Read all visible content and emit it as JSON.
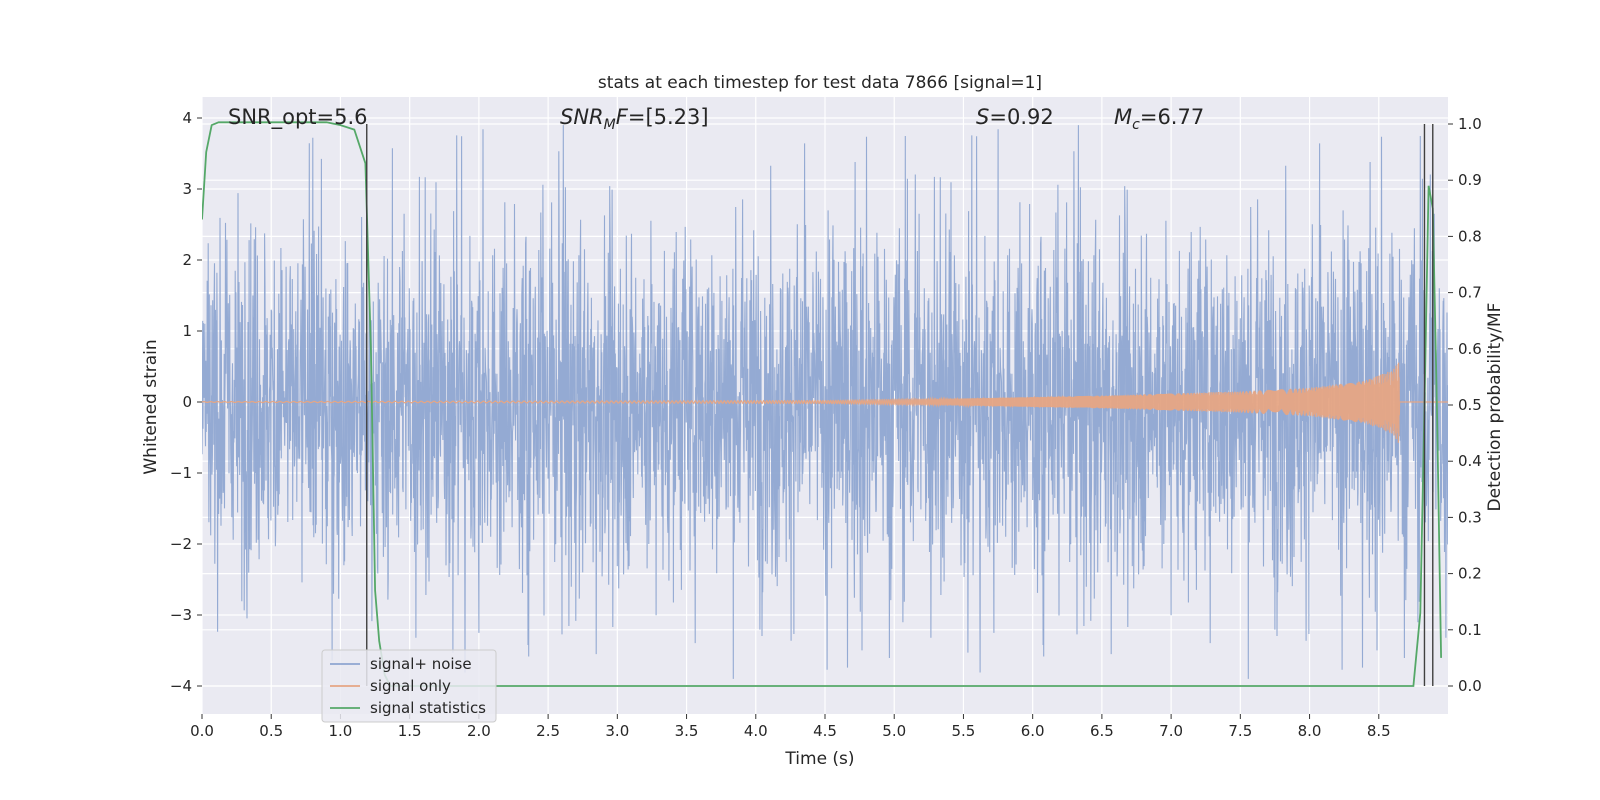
{
  "chart_data": {
    "type": "line",
    "title": "stats at each timestep for test data 7866 [signal=1]",
    "xlabel": "Time (s)",
    "ylabel_left": "Whitened strain",
    "ylabel_right": "Detection probability/MF",
    "xlim": [
      0,
      9.0
    ],
    "ylim_left": [
      -4.4,
      4.3
    ],
    "ylim_right": [
      -0.05,
      1.03
    ],
    "xticks": [
      "0.0",
      "0.5",
      "1.0",
      "1.5",
      "2.0",
      "2.5",
      "3.0",
      "3.5",
      "4.0",
      "4.5",
      "5.0",
      "5.5",
      "6.0",
      "6.5",
      "7.0",
      "7.5",
      "8.0",
      "8.5"
    ],
    "yticks_left": [
      "4",
      "3",
      "2",
      "1",
      "0",
      "−1",
      "−2",
      "−3",
      "−4"
    ],
    "yticks_left_values": [
      4,
      3,
      2,
      1,
      0,
      -1,
      -2,
      -3,
      -4
    ],
    "yticks_right": [
      "1.0",
      "0.9",
      "0.8",
      "0.7",
      "0.6",
      "0.5",
      "0.4",
      "0.3",
      "0.2",
      "0.1",
      "0.0"
    ],
    "yticks_right_values": [
      1.0,
      0.9,
      0.8,
      0.7,
      0.6,
      0.5,
      0.4,
      0.3,
      0.2,
      0.1,
      0.0
    ],
    "grid": true,
    "annotations": {
      "snr_opt": "SNR_opt=5.6",
      "snr_mf": "[5.23]",
      "s": "0.92",
      "mc": "6.77"
    },
    "series": [
      {
        "name": "signal+ noise",
        "color": "#8fa6d1",
        "axis": "left",
        "description_range": [
          -3.9,
          3.9
        ],
        "typical_amplitude": 2.0
      },
      {
        "name": "signal only",
        "color": "#e6a584",
        "axis": "left",
        "envelope": {
          "x": [
            0,
            4.5,
            5.5,
            6.5,
            7.5,
            8.0,
            8.4,
            8.6,
            8.65
          ],
          "amp": [
            0.005,
            0.02,
            0.05,
            0.09,
            0.15,
            0.2,
            0.3,
            0.45,
            0.6
          ]
        }
      },
      {
        "name": "signal statistics",
        "color": "#55a868",
        "axis": "right",
        "x": [
          0.0,
          0.03,
          0.07,
          0.12,
          0.3,
          0.5,
          0.7,
          0.9,
          1.0,
          1.1,
          1.18,
          1.22,
          1.25,
          1.28,
          1.32,
          1.36,
          1.5,
          3.0,
          5.0,
          7.0,
          8.5,
          8.75,
          8.8,
          8.83,
          8.86,
          8.89,
          8.92,
          8.95
        ],
        "y": [
          0.83,
          0.95,
          0.998,
          1.003,
          1.003,
          1.003,
          1.003,
          1.003,
          0.998,
          0.99,
          0.93,
          0.6,
          0.17,
          0.08,
          0.02,
          0.0,
          0.0,
          0.0,
          0.0,
          0.0,
          0.0,
          0.0,
          0.13,
          0.5,
          0.89,
          0.85,
          0.5,
          0.05
        ]
      }
    ],
    "vertical_lines": [
      1.19,
      8.83,
      8.89
    ]
  }
}
